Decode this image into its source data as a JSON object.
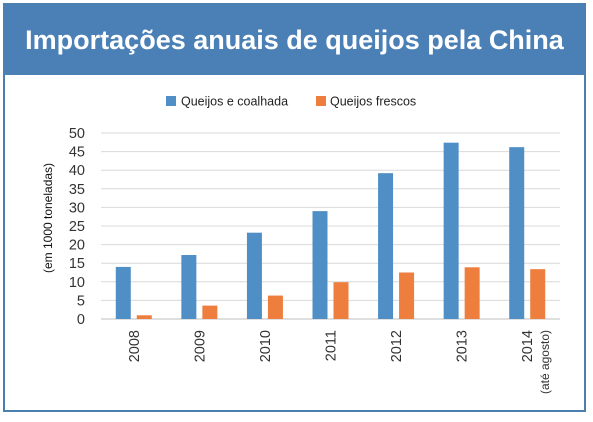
{
  "title": "Importações anuais de queijos pela China",
  "colors": {
    "title_bg": "#4a80b5",
    "series1": "#4f8fc6",
    "series2": "#ee7e3d",
    "grid": "#d9d9d9",
    "frame": "#4a7fb0"
  },
  "chart_data": {
    "type": "bar",
    "categories": [
      "2008",
      "2009",
      "2010",
      "2011",
      "2012",
      "2013",
      "2014"
    ],
    "category_sublabels": [
      "",
      "",
      "",
      "",
      "",
      "",
      "(até agosto)"
    ],
    "series": [
      {
        "name": "Queijos e coalhada",
        "values": [
          14,
          17.2,
          23.2,
          29,
          39.2,
          47.4,
          46.2
        ]
      },
      {
        "name": "Queijos frescos",
        "values": [
          1,
          3.6,
          6.3,
          9.9,
          12.5,
          13.9,
          13.4
        ]
      }
    ],
    "title": "Importações anuais de queijos pela China",
    "ylabel": "(em 1000 toneladas)",
    "xlabel": "",
    "ylim": [
      0,
      50
    ],
    "yticks": [
      0,
      5,
      10,
      15,
      20,
      25,
      30,
      35,
      40,
      45,
      50
    ],
    "grid": true,
    "legend_position": "top"
  }
}
